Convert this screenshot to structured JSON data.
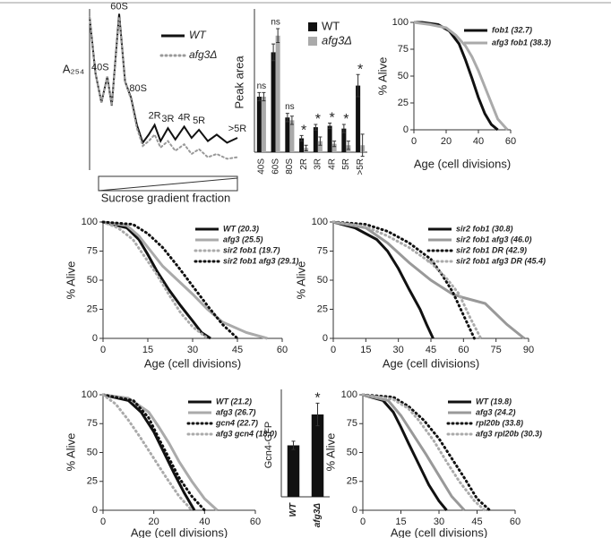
{
  "chart_data": [
    {
      "type": "line",
      "ylabel": "A₂₅₄",
      "xlabel": "Sucrose gradient fraction",
      "xlim": [
        0,
        100
      ],
      "ylim": [
        0,
        100
      ],
      "peak_labels": [
        "40S",
        "60S",
        "80S",
        "2R",
        "3R",
        "4R",
        "5R",
        ">5R"
      ],
      "series": [
        {
          "name": "WT",
          "color": "#111111",
          "style": "solid",
          "x": [
            0,
            4,
            8,
            12,
            15,
            20,
            24,
            28,
            32,
            36,
            40,
            44,
            48,
            53,
            58,
            64,
            69,
            74,
            80,
            86,
            93,
            100
          ],
          "values": [
            95,
            60,
            42,
            58,
            40,
            97,
            55,
            45,
            28,
            17,
            22,
            28,
            18,
            26,
            19,
            27,
            20,
            25,
            18,
            22,
            17,
            20
          ]
        },
        {
          "name": "afg3Δ",
          "color": "#999999",
          "style": "dotted",
          "x": [
            0,
            4,
            8,
            12,
            15,
            20,
            24,
            28,
            32,
            36,
            40,
            44,
            48,
            53,
            58,
            64,
            69,
            74,
            80,
            86,
            93,
            100
          ],
          "values": [
            95,
            60,
            42,
            58,
            40,
            95,
            55,
            44,
            26,
            15,
            18,
            22,
            14,
            18,
            12,
            16,
            10,
            13,
            8,
            10,
            7,
            8
          ]
        }
      ]
    },
    {
      "type": "bar",
      "ylabel": "Peak area",
      "ylim": [
        0,
        100
      ],
      "categories": [
        "40S",
        "60S",
        "80S",
        "2R",
        "3R",
        "4R",
        "5R",
        ">5R"
      ],
      "significance": [
        "ns",
        "ns",
        "ns",
        "*",
        "*",
        "*",
        "*",
        "*"
      ],
      "series": [
        {
          "name": "WT",
          "color": "#111111",
          "values": [
            40,
            72,
            25,
            10,
            18,
            19,
            17,
            48
          ],
          "errors": [
            3,
            6,
            3,
            2,
            2,
            2,
            3,
            8
          ]
        },
        {
          "name": "afg3Δ",
          "color": "#aaaaaa",
          "values": [
            40,
            84,
            23,
            3,
            8,
            6,
            5,
            5
          ],
          "errors": [
            3,
            5,
            3,
            2,
            3,
            2,
            3,
            8
          ]
        }
      ]
    },
    {
      "type": "line",
      "ylabel": "% Alive",
      "xlabel": "Age (cell divisions)",
      "xlim": [
        0,
        60
      ],
      "ylim": [
        0,
        100
      ],
      "xticks": [
        0,
        20,
        40,
        60
      ],
      "yticks": [
        0,
        25,
        50,
        75,
        100
      ],
      "series": [
        {
          "name": "fob1 (32.7)",
          "color": "#111111",
          "style": "solid",
          "x": [
            0,
            5,
            15,
            22,
            28,
            32,
            36,
            40,
            44,
            48,
            52
          ],
          "values": [
            100,
            100,
            98,
            92,
            80,
            65,
            48,
            30,
            15,
            5,
            0
          ]
        },
        {
          "name": "afg3 fob1 (38.3)",
          "color": "#aaaaaa",
          "style": "solid",
          "x": [
            0,
            10,
            20,
            26,
            32,
            36,
            40,
            44,
            48,
            52,
            58
          ],
          "values": [
            100,
            98,
            95,
            88,
            78,
            68,
            55,
            40,
            25,
            10,
            0
          ]
        }
      ]
    },
    {
      "type": "line",
      "ylabel": "% Alive",
      "xlabel": "Age (cell divisions)",
      "xlim": [
        0,
        60
      ],
      "ylim": [
        0,
        100
      ],
      "xticks": [
        0,
        15,
        30,
        45,
        60
      ],
      "yticks": [
        0,
        25,
        50,
        75,
        100
      ],
      "series": [
        {
          "name": "WT (20.3)",
          "color": "#111111",
          "style": "solid",
          "x": [
            0,
            8,
            12,
            15,
            18,
            22,
            26,
            30,
            33,
            36
          ],
          "values": [
            100,
            95,
            85,
            72,
            58,
            42,
            28,
            15,
            5,
            0
          ]
        },
        {
          "name": "afg3 (25.5)",
          "color": "#aaaaaa",
          "style": "solid",
          "x": [
            0,
            8,
            12,
            16,
            20,
            25,
            30,
            35,
            40,
            48,
            55
          ],
          "values": [
            100,
            97,
            88,
            75,
            62,
            50,
            38,
            25,
            14,
            5,
            0
          ]
        },
        {
          "name": "sir2 fob1 (19.7)",
          "color": "#aaaaaa",
          "style": "dotted",
          "x": [
            0,
            5,
            10,
            14,
            18,
            22,
            26,
            30,
            35
          ],
          "values": [
            100,
            95,
            85,
            70,
            55,
            38,
            22,
            10,
            0
          ]
        },
        {
          "name": "sir2 fob1 afg3 (29.1)",
          "color": "#111111",
          "style": "dotted",
          "x": [
            0,
            10,
            15,
            20,
            25,
            30,
            35,
            40,
            45
          ],
          "values": [
            100,
            98,
            90,
            78,
            62,
            45,
            28,
            12,
            0
          ]
        }
      ]
    },
    {
      "type": "line",
      "ylabel": "% Alive",
      "xlabel": "Age (cell divisions)",
      "xlim": [
        0,
        90
      ],
      "ylim": [
        0,
        100
      ],
      "xticks": [
        0,
        15,
        30,
        45,
        60,
        75,
        90
      ],
      "yticks": [
        0,
        25,
        50,
        75,
        100
      ],
      "series": [
        {
          "name": "sir2 fob1 (30.8)",
          "color": "#111111",
          "style": "solid",
          "x": [
            0,
            10,
            20,
            25,
            30,
            35,
            40,
            43,
            46
          ],
          "values": [
            100,
            95,
            85,
            75,
            60,
            42,
            25,
            12,
            0
          ]
        },
        {
          "name": "sir2 fob1 afg3 (46.0)",
          "color": "#999999",
          "style": "solid",
          "x": [
            0,
            15,
            25,
            35,
            45,
            55,
            60,
            70,
            80,
            88
          ],
          "values": [
            100,
            95,
            82,
            65,
            50,
            38,
            35,
            30,
            12,
            0
          ]
        },
        {
          "name": "sir2 fob1 DR (42.9)",
          "color": "#111111",
          "style": "dotted",
          "x": [
            0,
            15,
            25,
            35,
            45,
            50,
            55,
            60,
            65
          ],
          "values": [
            100,
            98,
            92,
            82,
            68,
            55,
            40,
            20,
            0
          ]
        },
        {
          "name": "sir2 fob1 afg3 DR (45.4)",
          "color": "#aaaaaa",
          "style": "dotted",
          "x": [
            0,
            15,
            25,
            35,
            45,
            52,
            58,
            63,
            68
          ],
          "values": [
            100,
            96,
            88,
            78,
            65,
            52,
            38,
            18,
            0
          ]
        }
      ]
    },
    {
      "type": "line",
      "ylabel": "% Alive",
      "xlabel": "Age (cell divisions)",
      "xlim": [
        0,
        60
      ],
      "ylim": [
        0,
        100
      ],
      "xticks": [
        0,
        20,
        40,
        60
      ],
      "yticks": [
        0,
        25,
        50,
        75,
        100
      ],
      "series": [
        {
          "name": "WT (21.2)",
          "color": "#111111",
          "style": "solid",
          "x": [
            0,
            10,
            15,
            20,
            24,
            28,
            32,
            36
          ],
          "values": [
            100,
            95,
            85,
            68,
            50,
            32,
            15,
            0
          ]
        },
        {
          "name": "afg3 (26.7)",
          "color": "#aaaaaa",
          "style": "solid",
          "x": [
            0,
            10,
            18,
            22,
            26,
            30,
            35,
            40,
            45
          ],
          "values": [
            100,
            97,
            85,
            72,
            58,
            42,
            25,
            10,
            0
          ]
        },
        {
          "name": "gcn4 (22.7)",
          "color": "#111111",
          "style": "dotted",
          "x": [
            0,
            12,
            18,
            22,
            26,
            30,
            35,
            40
          ],
          "values": [
            100,
            95,
            80,
            62,
            45,
            28,
            12,
            0
          ]
        },
        {
          "name": "afg3 gcn4 (18.0)",
          "color": "#aaaaaa",
          "style": "dotted",
          "x": [
            0,
            5,
            10,
            15,
            20,
            25,
            30,
            35
          ],
          "values": [
            100,
            92,
            78,
            62,
            45,
            28,
            12,
            0
          ]
        }
      ]
    },
    {
      "type": "bar",
      "ylabel": "Gcn4-GFP",
      "ylim": [
        0,
        2
      ],
      "categories": [
        "WT",
        "afg3Δ"
      ],
      "significance": [
        null,
        "*"
      ],
      "series": [
        {
          "color": "#111111",
          "values": [
            1.0,
            1.6
          ],
          "errors": [
            0.08,
            0.22
          ]
        }
      ]
    },
    {
      "type": "line",
      "ylabel": "% Alive",
      "xlabel": "Age (cell divisions)",
      "xlim": [
        0,
        60
      ],
      "ylim": [
        0,
        100
      ],
      "xticks": [
        0,
        15,
        30,
        45,
        60
      ],
      "yticks": [
        0,
        25,
        50,
        75,
        100
      ],
      "series": [
        {
          "name": "WT (19.8)",
          "color": "#111111",
          "style": "solid",
          "x": [
            0,
            8,
            12,
            15,
            18,
            22,
            26,
            30,
            33
          ],
          "values": [
            100,
            95,
            85,
            72,
            58,
            40,
            22,
            8,
            0
          ]
        },
        {
          "name": "afg3 (24.2)",
          "color": "#999999",
          "style": "solid",
          "x": [
            0,
            10,
            15,
            20,
            25,
            30,
            35,
            40
          ],
          "values": [
            100,
            95,
            82,
            65,
            48,
            30,
            12,
            0
          ]
        },
        {
          "name": "rpl20b (33.8)",
          "color": "#111111",
          "style": "dotted",
          "x": [
            0,
            12,
            18,
            24,
            30,
            35,
            40,
            45,
            50
          ],
          "values": [
            100,
            98,
            90,
            78,
            62,
            45,
            28,
            10,
            0
          ]
        },
        {
          "name": "afg3 rpl20b (30.3)",
          "color": "#aaaaaa",
          "style": "dotted",
          "x": [
            0,
            12,
            18,
            22,
            28,
            33,
            38,
            44,
            48
          ],
          "values": [
            100,
            96,
            88,
            78,
            60,
            42,
            25,
            8,
            0
          ]
        }
      ]
    }
  ]
}
